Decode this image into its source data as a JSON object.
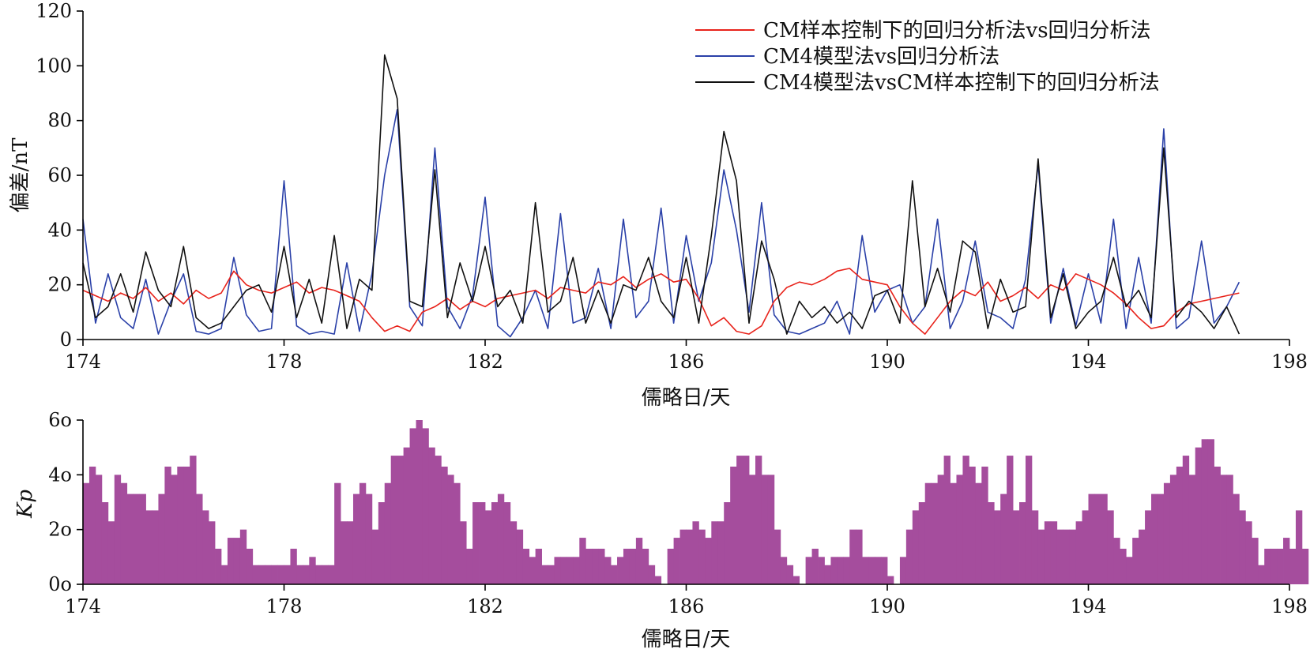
{
  "chart_data": [
    {
      "type": "line",
      "ylabel": "偏差/nT",
      "xlabel": "儒略日/天",
      "xlim": [
        174,
        198
      ],
      "ylim": [
        0,
        120
      ],
      "x_ticks": [
        "174",
        "178",
        "182",
        "186",
        "190",
        "194",
        "198"
      ],
      "y_ticks": [
        "0",
        "20",
        "40",
        "60",
        "80",
        "100",
        "120"
      ],
      "grid": false,
      "legend_position": "top-right",
      "x": [
        174.0,
        174.25,
        174.5,
        174.75,
        175.0,
        175.25,
        175.5,
        175.75,
        176.0,
        176.25,
        176.5,
        176.75,
        177.0,
        177.25,
        177.5,
        177.75,
        178.0,
        178.25,
        178.5,
        178.75,
        179.0,
        179.25,
        179.5,
        179.75,
        180.0,
        180.25,
        180.5,
        180.75,
        181.0,
        181.25,
        181.5,
        181.75,
        182.0,
        182.25,
        182.5,
        182.75,
        183.0,
        183.25,
        183.5,
        183.75,
        184.0,
        184.25,
        184.5,
        184.75,
        185.0,
        185.25,
        185.5,
        185.75,
        186.0,
        186.25,
        186.5,
        186.75,
        187.0,
        187.25,
        187.5,
        187.75,
        188.0,
        188.25,
        188.5,
        188.75,
        189.0,
        189.25,
        189.5,
        189.75,
        190.0,
        190.25,
        190.5,
        190.75,
        191.0,
        191.25,
        191.5,
        191.75,
        192.0,
        192.25,
        192.5,
        192.75,
        193.0,
        193.25,
        193.5,
        193.75,
        194.0,
        194.25,
        194.5,
        194.75,
        195.0,
        195.25,
        195.5,
        195.75,
        196.0,
        196.25,
        196.5,
        196.75,
        197.0
      ],
      "series": [
        {
          "name": "CM样本控制下的回归分析法vs回归分析法",
          "color": "#e8231b",
          "values": [
            18,
            16,
            14,
            17,
            15,
            19,
            14,
            17,
            13,
            18,
            15,
            17,
            25,
            20,
            18,
            17,
            19,
            21,
            17,
            19,
            18,
            16,
            14,
            8,
            3,
            5,
            3,
            10,
            12,
            15,
            11,
            14,
            12,
            15,
            16,
            17,
            18,
            15,
            19,
            18,
            17,
            21,
            20,
            23,
            19,
            22,
            24,
            21,
            22,
            15,
            5,
            8,
            3,
            2,
            5,
            14,
            19,
            21,
            20,
            22,
            25,
            26,
            22,
            21,
            20,
            12,
            6,
            2,
            8,
            14,
            18,
            16,
            21,
            14,
            16,
            19,
            15,
            20,
            18,
            24,
            22,
            20,
            17,
            13,
            8,
            4,
            5,
            10,
            13,
            14,
            15,
            16,
            17
          ]
        },
        {
          "name": "CM4模型法vs回归分析法",
          "color": "#2a40a8",
          "values": [
            44,
            6,
            24,
            8,
            4,
            22,
            2,
            14,
            24,
            3,
            2,
            4,
            30,
            9,
            3,
            4,
            58,
            5,
            2,
            3,
            2,
            28,
            3,
            24,
            60,
            84,
            12,
            5,
            70,
            12,
            4,
            16,
            52,
            5,
            1,
            8,
            18,
            4,
            46,
            6,
            8,
            26,
            4,
            44,
            8,
            14,
            48,
            6,
            38,
            14,
            28,
            62,
            40,
            10,
            50,
            9,
            3,
            2,
            4,
            6,
            14,
            2,
            38,
            10,
            18,
            20,
            6,
            12,
            44,
            4,
            14,
            36,
            10,
            8,
            4,
            22,
            64,
            6,
            26,
            5,
            24,
            6,
            44,
            4,
            30,
            6,
            77,
            4,
            8,
            36,
            6,
            12,
            21
          ]
        },
        {
          "name": "CM4模型法vsCM样本控制下的回归分析法",
          "color": "#111111",
          "values": [
            28,
            8,
            12,
            24,
            10,
            32,
            18,
            12,
            34,
            8,
            4,
            6,
            12,
            18,
            20,
            10,
            34,
            8,
            22,
            6,
            38,
            4,
            22,
            18,
            104,
            88,
            14,
            12,
            62,
            8,
            28,
            14,
            34,
            12,
            18,
            6,
            50,
            10,
            14,
            30,
            6,
            18,
            6,
            20,
            18,
            30,
            14,
            8,
            30,
            6,
            38,
            76,
            58,
            6,
            36,
            22,
            2,
            14,
            8,
            12,
            6,
            10,
            4,
            16,
            18,
            6,
            58,
            12,
            26,
            10,
            36,
            32,
            4,
            22,
            10,
            12,
            66,
            8,
            24,
            4,
            10,
            14,
            30,
            12,
            18,
            8,
            70,
            8,
            14,
            10,
            4,
            12,
            2
          ]
        }
      ]
    },
    {
      "type": "bar",
      "ylabel": "Kp",
      "xlabel": "儒略日/天",
      "xlim": [
        174,
        198
      ],
      "ylim": [
        0,
        6
      ],
      "x_ticks": [
        "174",
        "178",
        "182",
        "186",
        "190",
        "194",
        "198"
      ],
      "y_ticks": [
        "0o",
        "2o",
        "4o",
        "6o"
      ],
      "grid": false,
      "color": "#a54d9d",
      "x_start": 174,
      "bin_width": 0.125,
      "values": [
        3.7,
        4.3,
        4.0,
        3.0,
        2.3,
        4.0,
        3.7,
        3.3,
        3.3,
        3.3,
        2.7,
        2.7,
        3.3,
        4.3,
        4.0,
        4.3,
        4.3,
        4.7,
        3.3,
        2.7,
        2.3,
        1.3,
        0.7,
        1.7,
        1.7,
        2.0,
        1.3,
        0.7,
        0.7,
        0.7,
        0.7,
        0.7,
        0.7,
        1.3,
        0.7,
        0.7,
        1.0,
        0.7,
        0.7,
        0.7,
        3.7,
        2.3,
        2.3,
        3.3,
        3.7,
        3.3,
        2.0,
        3.0,
        3.7,
        4.7,
        4.7,
        5.0,
        5.7,
        6.0,
        5.7,
        5.0,
        4.7,
        4.3,
        4.0,
        3.7,
        2.3,
        1.3,
        3.0,
        3.0,
        2.7,
        3.0,
        3.3,
        3.0,
        2.3,
        2.0,
        1.3,
        1.0,
        1.3,
        0.7,
        0.7,
        1.0,
        1.0,
        1.0,
        1.0,
        1.7,
        1.3,
        1.3,
        1.3,
        1.0,
        0.7,
        1.0,
        1.3,
        1.3,
        1.7,
        1.3,
        0.7,
        0.3,
        0.0,
        1.3,
        1.7,
        2.0,
        2.0,
        2.3,
        2.0,
        1.7,
        2.3,
        2.3,
        3.0,
        4.3,
        4.7,
        4.7,
        4.0,
        4.7,
        4.0,
        4.0,
        2.0,
        1.0,
        0.7,
        0.3,
        0.0,
        1.0,
        1.3,
        1.0,
        0.7,
        1.0,
        1.0,
        1.0,
        2.0,
        2.0,
        1.0,
        1.0,
        1.0,
        1.0,
        0.3,
        0.0,
        1.0,
        2.0,
        2.7,
        3.0,
        3.7,
        3.7,
        4.0,
        4.7,
        3.7,
        4.0,
        4.7,
        4.3,
        3.7,
        4.3,
        3.0,
        2.7,
        3.3,
        4.7,
        2.7,
        3.0,
        4.7,
        2.7,
        2.0,
        2.3,
        2.3,
        2.0,
        2.0,
        2.0,
        2.3,
        2.7,
        3.3,
        3.3,
        3.3,
        2.7,
        1.7,
        1.3,
        1.0,
        1.7,
        2.0,
        2.7,
        3.3,
        3.3,
        3.7,
        4.0,
        4.3,
        4.7,
        4.0,
        5.0,
        5.3,
        5.3,
        4.3,
        4.0,
        4.0,
        3.3,
        2.7,
        2.3,
        1.7,
        0.7,
        1.3,
        1.3,
        1.3,
        1.7,
        1.3,
        2.7,
        1.3
      ]
    }
  ]
}
